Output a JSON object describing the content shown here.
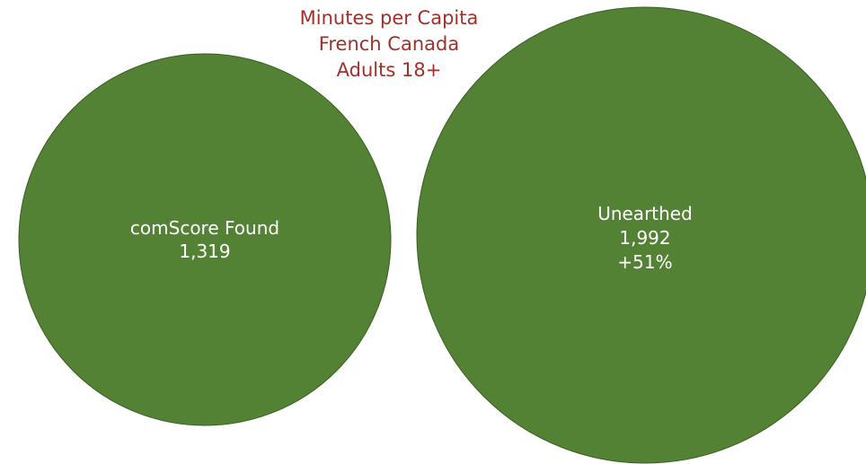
{
  "chart_data": {
    "type": "bubble",
    "title_lines": [
      "Minutes per Capita",
      "French Canada",
      "Adults 18+"
    ],
    "bubbles": [
      {
        "label": "comScore Found",
        "value_text": "1,319",
        "value": 1319,
        "change_text": ""
      },
      {
        "label": "Unearthed",
        "value_text": "1,992",
        "value": 1992,
        "change_text": "+51%"
      }
    ],
    "fill_color": "#548235",
    "stroke_color": "#3b5e22",
    "title_color": "#a0302a",
    "label_color": "#ffffff"
  }
}
